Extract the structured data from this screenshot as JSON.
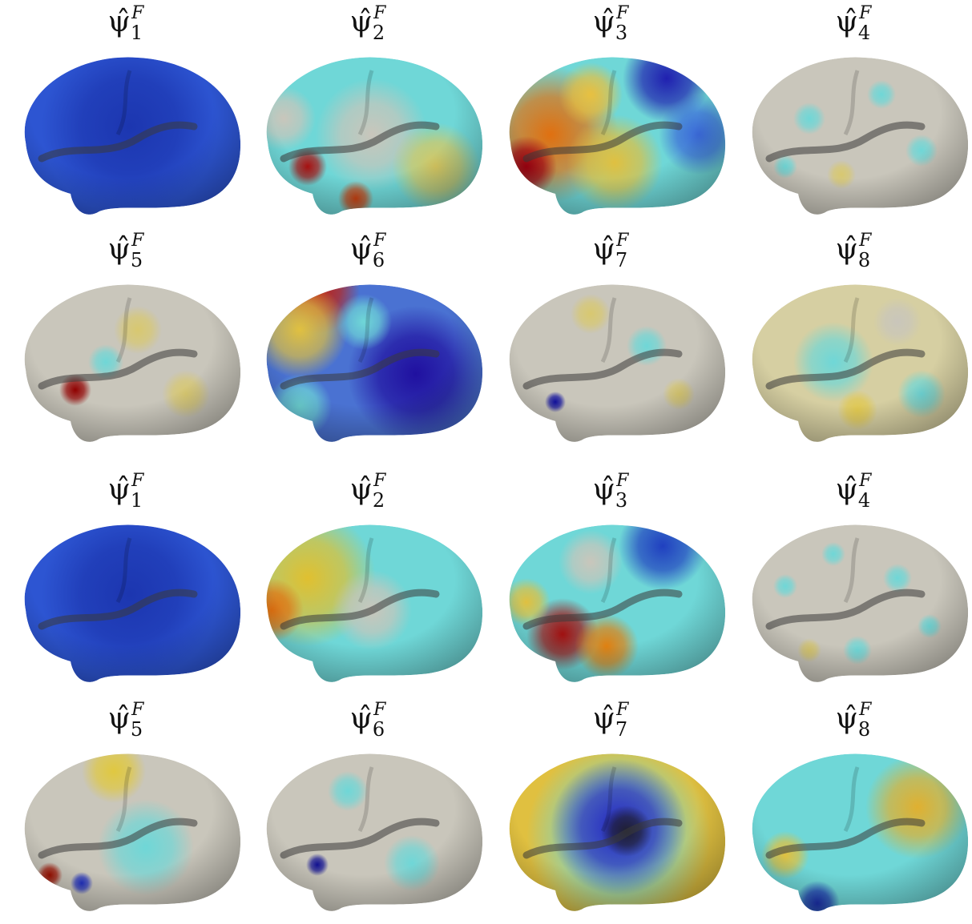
{
  "panels": [
    {
      "label": {
        "symbol": "ψ̂",
        "subscript": "1",
        "superscript": "F"
      }
    },
    {
      "label": {
        "symbol": "ψ̂",
        "subscript": "2",
        "superscript": "F"
      }
    },
    {
      "label": {
        "symbol": "ψ̂",
        "subscript": "3",
        "superscript": "F"
      }
    },
    {
      "label": {
        "symbol": "ψ̂",
        "subscript": "4",
        "superscript": "F"
      }
    },
    {
      "label": {
        "symbol": "ψ̂",
        "subscript": "5",
        "superscript": "F"
      }
    },
    {
      "label": {
        "symbol": "ψ̂",
        "subscript": "6",
        "superscript": "F"
      }
    },
    {
      "label": {
        "symbol": "ψ̂",
        "subscript": "7",
        "superscript": "F"
      }
    },
    {
      "label": {
        "symbol": "ψ̂",
        "subscript": "8",
        "superscript": "F"
      }
    },
    {
      "label": {
        "symbol": "ψ̂",
        "subscript": "1",
        "superscript": "F"
      }
    },
    {
      "label": {
        "symbol": "ψ̂",
        "subscript": "2",
        "superscript": "F"
      }
    },
    {
      "label": {
        "symbol": "ψ̂",
        "subscript": "3",
        "superscript": "F"
      }
    },
    {
      "label": {
        "symbol": "ψ̂",
        "subscript": "4",
        "superscript": "F"
      }
    },
    {
      "label": {
        "symbol": "ψ̂",
        "subscript": "5",
        "superscript": "F"
      }
    },
    {
      "label": {
        "symbol": "ψ̂",
        "subscript": "6",
        "superscript": "F"
      }
    },
    {
      "label": {
        "symbol": "ψ̂",
        "subscript": "7",
        "superscript": "F"
      }
    },
    {
      "label": {
        "symbol": "ψ̂",
        "subscript": "8",
        "superscript": "F"
      }
    }
  ]
}
